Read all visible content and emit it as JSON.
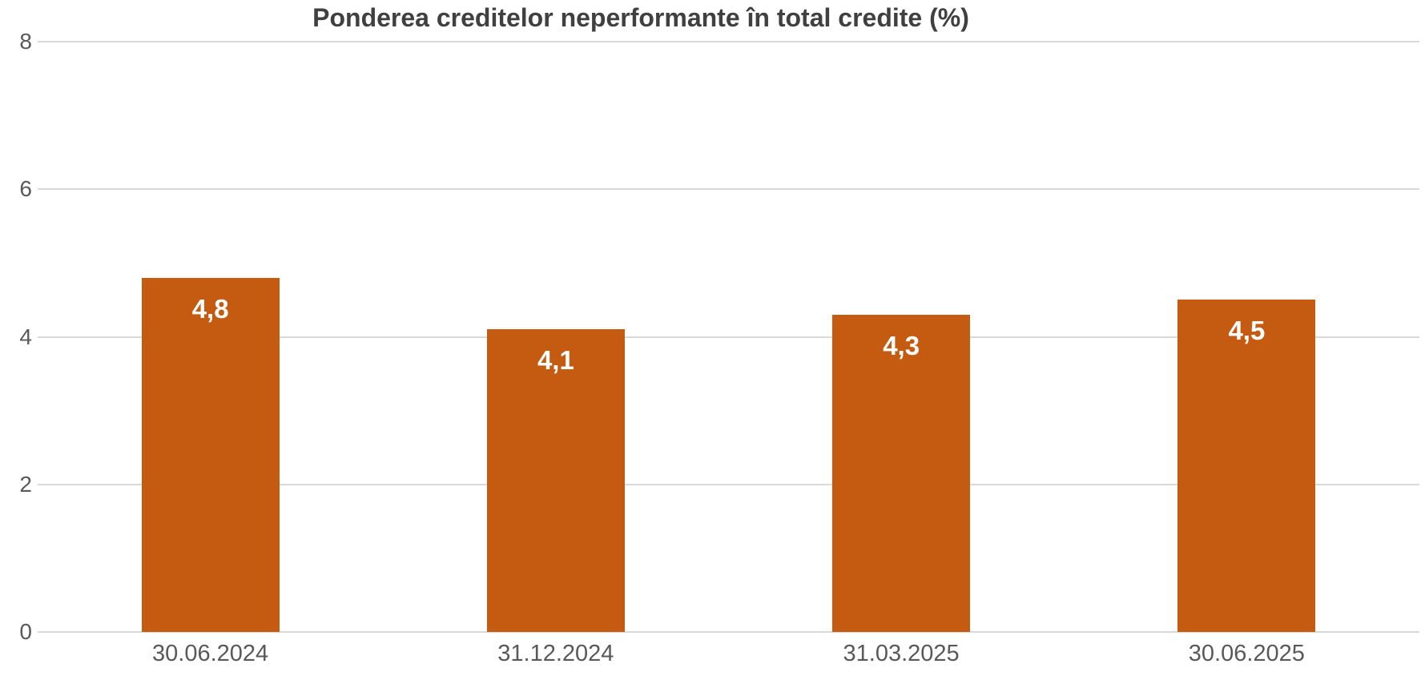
{
  "chart_data": {
    "type": "bar",
    "title": "Ponderea creditelor neperformante în total credite (%)",
    "categories": [
      "30.06.2024",
      "31.12.2024",
      "31.03.2025",
      "30.06.2025"
    ],
    "values": [
      4.8,
      4.1,
      4.3,
      4.5
    ],
    "value_labels": [
      "4,8",
      "4,1",
      "4,3",
      "4,5"
    ],
    "ylabel": "",
    "xlabel": "",
    "ylim": [
      0,
      8
    ],
    "yticks": [
      8,
      6,
      4,
      2,
      0
    ],
    "grid": "horizontal",
    "legend_position": "none",
    "colors": {
      "bar": "#c55a11",
      "value_label": "#ffffff",
      "title": "#404040",
      "axis_label": "#595959",
      "gridline": "#d9d9d9"
    }
  }
}
